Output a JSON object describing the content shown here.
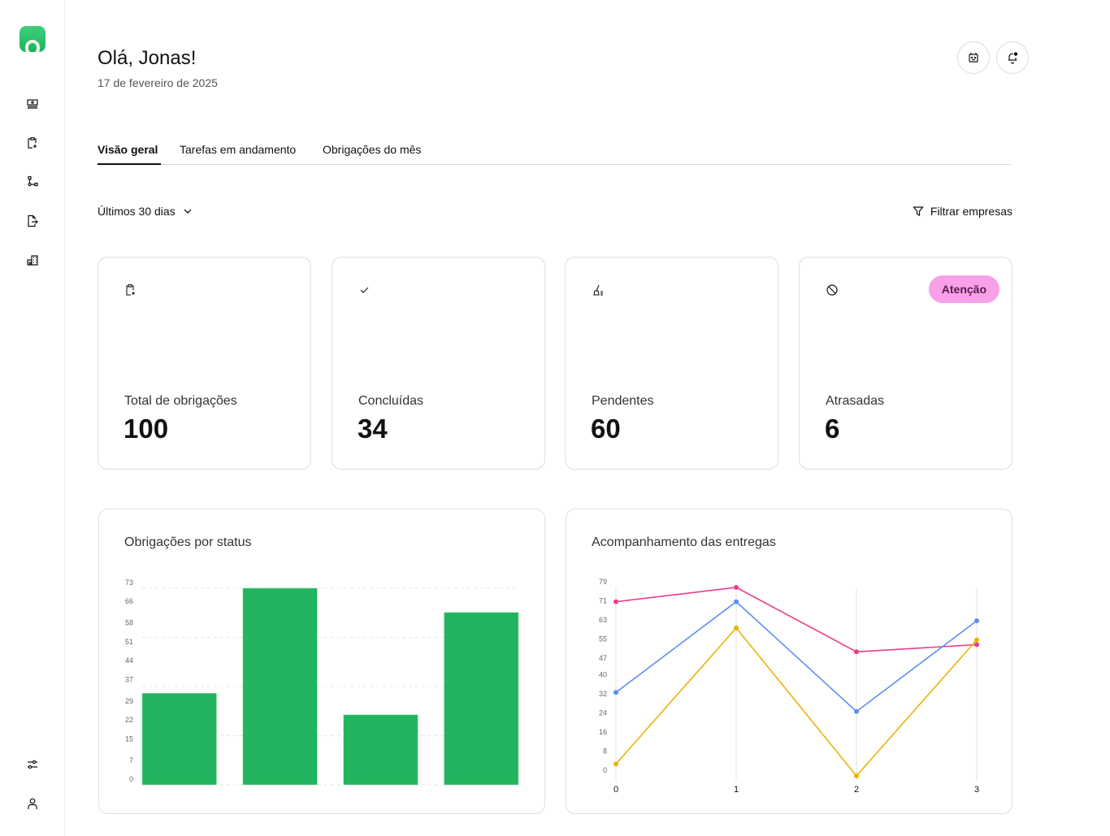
{
  "sidebar": {
    "items": [
      "dashboard-icon",
      "clipboard-add-icon",
      "workflow-icon",
      "file-export-icon",
      "building-icon"
    ],
    "bottom": [
      "settings-sliders-icon",
      "user-icon"
    ]
  },
  "header": {
    "title": "Olá, Jonas!",
    "date": "17 de fevereiro de 2025",
    "actions": [
      "robot-icon",
      "bell-icon"
    ]
  },
  "tabs": [
    {
      "label": "Visão geral",
      "active": true
    },
    {
      "label": "Tarefas em andamento"
    },
    {
      "label": "Obrigações do mês"
    }
  ],
  "filters": {
    "period": "Últimos 30 dias",
    "companies": "Filtrar empresas"
  },
  "cards": [
    {
      "icon": "clipboard-add-icon",
      "label": "Total de obrigações",
      "value": "100"
    },
    {
      "icon": "check-icon",
      "label": "Concluídas",
      "value": "34"
    },
    {
      "icon": "broom-icon",
      "label": "Pendentes",
      "value": "60"
    },
    {
      "icon": "prohibited-icon",
      "label": "Atrasadas",
      "value": "6",
      "badge": "Atenção"
    }
  ],
  "colors": {
    "accent": "#22b45e",
    "badge": "#f8a0e8"
  },
  "chart_data": [
    {
      "type": "bar",
      "title": "Obrigações por status",
      "categories": [
        "",
        "",
        "",
        ""
      ],
      "values": [
        34,
        73,
        26,
        64
      ],
      "yticks": [
        "0",
        "7",
        "15",
        "22",
        "29",
        "37",
        "44",
        "51",
        "58",
        "66",
        "73"
      ],
      "ylim": [
        0,
        73
      ],
      "grid": true,
      "color": "#22b45e"
    },
    {
      "type": "line",
      "title": "Acompanhamento das entregas",
      "x": [
        0,
        1,
        2,
        3
      ],
      "xticks": [
        "0",
        "1",
        "2",
        "3"
      ],
      "yticks": [
        "0",
        "8",
        "16",
        "24",
        "32",
        "40",
        "47",
        "55",
        "63",
        "71",
        "79"
      ],
      "ylim": [
        0,
        79
      ],
      "series": [
        {
          "values": [
            73,
            79,
            52,
            55
          ],
          "color": "#ec3d8a"
        },
        {
          "values": [
            35,
            73,
            27,
            65
          ],
          "color": "#5b8ef5"
        },
        {
          "values": [
            5,
            62,
            0,
            57
          ],
          "color": "#eab308"
        }
      ]
    }
  ]
}
